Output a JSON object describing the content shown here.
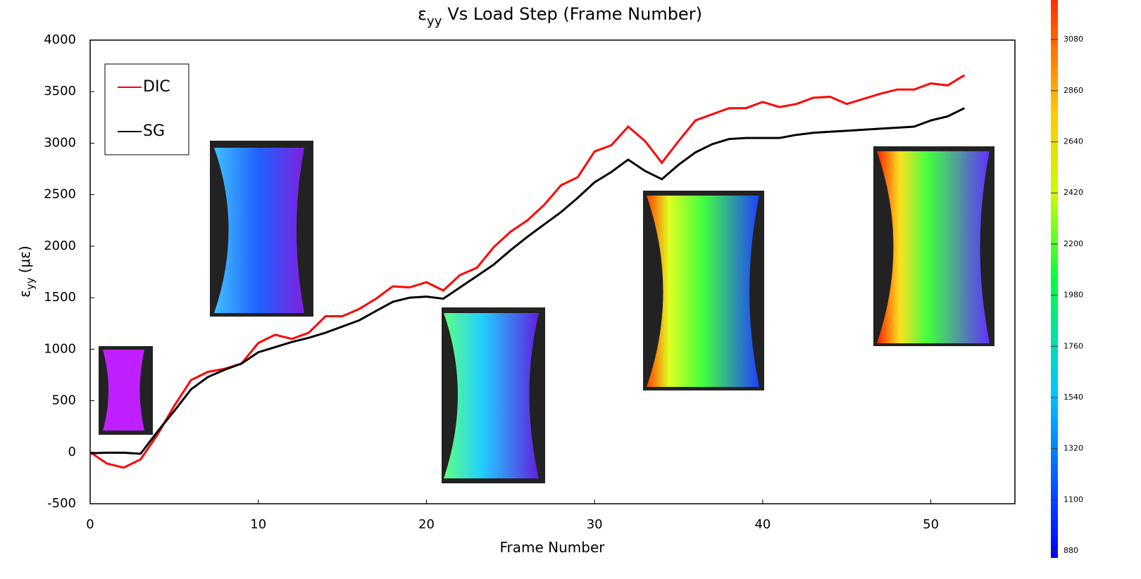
{
  "chart_data": {
    "type": "line",
    "title": {
      "symbol": "ε",
      "subscript": "yy",
      "text": "Vs Load Step (Frame Number)"
    },
    "x_label": "Frame Number",
    "y_label": {
      "symbol": "ε",
      "subscript": "yy",
      "text": "(με)"
    },
    "x": [
      0,
      1,
      2,
      3,
      4,
      5,
      6,
      7,
      8,
      9,
      10,
      11,
      12,
      13,
      14,
      15,
      16,
      17,
      18,
      19,
      20,
      21,
      22,
      23,
      24,
      25,
      26,
      27,
      28,
      29,
      30,
      31,
      32,
      33,
      34,
      35,
      36,
      37,
      38,
      39,
      40,
      41,
      42,
      43,
      44,
      45,
      46,
      47,
      48,
      49,
      50,
      51,
      52
    ],
    "series": [
      {
        "name": "DIC",
        "color": "#ff0000",
        "values": [
          0,
          -110,
          -150,
          -70,
          170,
          450,
          700,
          780,
          810,
          860,
          1060,
          1140,
          1100,
          1160,
          1320,
          1320,
          1390,
          1490,
          1610,
          1600,
          1650,
          1570,
          1720,
          1790,
          1990,
          2140,
          2250,
          2400,
          2590,
          2670,
          2920,
          2980,
          3160,
          3020,
          2810,
          3020,
          3220,
          3280,
          3340,
          3340,
          3400,
          3350,
          3380,
          3440,
          3450,
          3380,
          3430,
          3480,
          3520,
          3520,
          3580,
          3560,
          3660
        ]
      },
      {
        "name": "SG",
        "color": "#000000",
        "values": [
          -10,
          -5,
          -5,
          -15,
          200,
          400,
          610,
          730,
          800,
          860,
          970,
          1020,
          1070,
          1110,
          1160,
          1220,
          1280,
          1370,
          1460,
          1500,
          1510,
          1490,
          1600,
          1710,
          1820,
          1960,
          2090,
          2210,
          2330,
          2470,
          2620,
          2720,
          2840,
          2730,
          2650,
          2790,
          2910,
          2990,
          3040,
          3050,
          3050,
          3050,
          3080,
          3100,
          3110,
          3120,
          3130,
          3140,
          3150,
          3160,
          3220,
          3260,
          3340
        ]
      }
    ],
    "xlim": [
      0,
      55
    ],
    "xticks": [
      0,
      10,
      20,
      30,
      40,
      50
    ],
    "ylim": [
      -500,
      4000
    ],
    "yticks": [
      -500,
      0,
      500,
      1000,
      1500,
      2000,
      2500,
      3000,
      3500,
      4000
    ],
    "legend": "top-left",
    "colorbar": {
      "lim": [
        850,
        3250
      ],
      "ticks": [
        880,
        1100,
        1320,
        1540,
        1760,
        1980,
        2200,
        2420,
        2640,
        2860,
        3080
      ]
    }
  }
}
